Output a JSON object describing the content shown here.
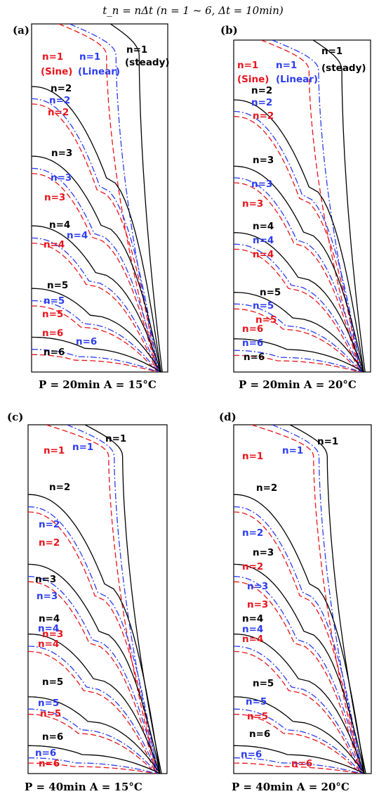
{
  "header": "t_n = nΔt (n = 1 ~ 6, Δt = 10min)",
  "colors": {
    "steady": "#000000",
    "sine": "#e8141b",
    "linear": "#2b3cf0"
  },
  "legend_styles": {
    "steady": "solid",
    "sine": "dashed",
    "linear": "dash-dot"
  },
  "panels": [
    {
      "label": "(a)",
      "caption": "P = 20min A = 15°C",
      "annotations": [
        {
          "text": "n=1",
          "color": "steady"
        },
        {
          "text": "(steady)",
          "color": "steady"
        },
        {
          "text": "n=1",
          "color": "sine"
        },
        {
          "text": "(Sine)",
          "color": "sine"
        },
        {
          "text": "n=1",
          "color": "linear"
        },
        {
          "text": "(Linear)",
          "color": "linear"
        },
        {
          "text": "n=2",
          "color": "steady"
        },
        {
          "text": "n=2",
          "color": "linear"
        },
        {
          "text": "n=2",
          "color": "sine"
        },
        {
          "text": "n=3",
          "color": "steady"
        },
        {
          "text": "n=3",
          "color": "linear"
        },
        {
          "text": "n=3",
          "color": "sine"
        },
        {
          "text": "n=4",
          "color": "steady"
        },
        {
          "text": "n=4",
          "color": "linear"
        },
        {
          "text": "n=4",
          "color": "sine"
        },
        {
          "text": "n=5",
          "color": "steady"
        },
        {
          "text": "n=5",
          "color": "linear"
        },
        {
          "text": "n=5",
          "color": "sine"
        },
        {
          "text": "n=6",
          "color": "sine"
        },
        {
          "text": "n=6",
          "color": "linear"
        },
        {
          "text": "n=6",
          "color": "steady"
        }
      ]
    },
    {
      "label": "(b)",
      "caption": "P = 20min A = 20°C",
      "annotations": [
        {
          "text": "n=1",
          "color": "steady"
        },
        {
          "text": "(steady)",
          "color": "steady"
        },
        {
          "text": "n=1",
          "color": "sine"
        },
        {
          "text": "(Sine)",
          "color": "sine"
        },
        {
          "text": "n=1",
          "color": "linear"
        },
        {
          "text": "(Linear)",
          "color": "linear"
        },
        {
          "text": "n=2",
          "color": "steady"
        },
        {
          "text": "n=2",
          "color": "linear"
        },
        {
          "text": "n=2",
          "color": "sine"
        },
        {
          "text": "n=3",
          "color": "steady"
        },
        {
          "text": "n=3",
          "color": "linear"
        },
        {
          "text": "n=3",
          "color": "sine"
        },
        {
          "text": "n=4",
          "color": "steady"
        },
        {
          "text": "n=4",
          "color": "linear"
        },
        {
          "text": "n=4",
          "color": "sine"
        },
        {
          "text": "n=5",
          "color": "steady"
        },
        {
          "text": "n=5",
          "color": "linear"
        },
        {
          "text": "n=5",
          "color": "sine"
        },
        {
          "text": "n=6",
          "color": "sine"
        },
        {
          "text": "n=6",
          "color": "linear"
        },
        {
          "text": "n=6",
          "color": "steady"
        }
      ]
    },
    {
      "label": "(c)",
      "caption": "P = 40min A = 15°C",
      "annotations": [
        {
          "text": "n=1",
          "color": "steady"
        },
        {
          "text": "n=1",
          "color": "sine"
        },
        {
          "text": "n=1",
          "color": "linear"
        },
        {
          "text": "n=2",
          "color": "steady"
        },
        {
          "text": "n=2",
          "color": "linear"
        },
        {
          "text": "n=2",
          "color": "sine"
        },
        {
          "text": "n=3",
          "color": "steady"
        },
        {
          "text": "n=3",
          "color": "linear"
        },
        {
          "text": "n=3",
          "color": "sine"
        },
        {
          "text": "n=4",
          "color": "steady"
        },
        {
          "text": "n=4",
          "color": "linear"
        },
        {
          "text": "n=4",
          "color": "sine"
        },
        {
          "text": "n=5",
          "color": "steady"
        },
        {
          "text": "n=5",
          "color": "linear"
        },
        {
          "text": "n=5",
          "color": "sine"
        },
        {
          "text": "n=6",
          "color": "steady"
        },
        {
          "text": "n=6",
          "color": "linear"
        },
        {
          "text": "n=6",
          "color": "sine"
        }
      ]
    },
    {
      "label": "(d)",
      "caption": "P = 40min A = 20°C",
      "annotations": [
        {
          "text": "n=1",
          "color": "steady"
        },
        {
          "text": "n=1",
          "color": "sine"
        },
        {
          "text": "n=1",
          "color": "linear"
        },
        {
          "text": "n=2",
          "color": "steady"
        },
        {
          "text": "n=2",
          "color": "linear"
        },
        {
          "text": "n=3",
          "color": "steady"
        },
        {
          "text": "n=2",
          "color": "sine"
        },
        {
          "text": "n=3",
          "color": "linear"
        },
        {
          "text": "n=3",
          "color": "sine"
        },
        {
          "text": "n=4",
          "color": "steady"
        },
        {
          "text": "n=4",
          "color": "linear"
        },
        {
          "text": "n=4",
          "color": "sine"
        },
        {
          "text": "n=5",
          "color": "steady"
        },
        {
          "text": "n=5",
          "color": "linear"
        },
        {
          "text": "n=5",
          "color": "sine"
        },
        {
          "text": "n=6",
          "color": "steady"
        },
        {
          "text": "n=6",
          "color": "linear"
        },
        {
          "text": "n=6",
          "color": "sine"
        }
      ]
    }
  ]
}
